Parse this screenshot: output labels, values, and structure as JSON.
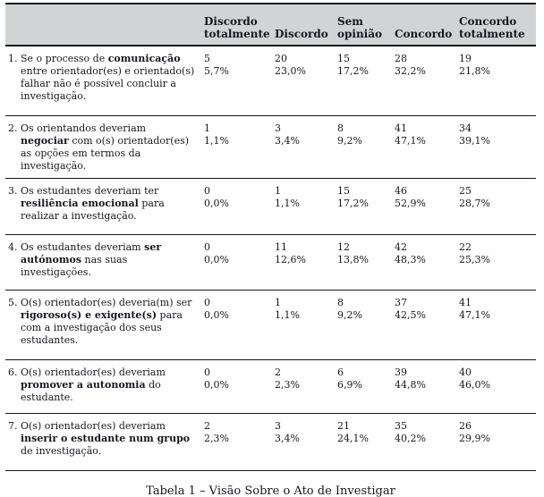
{
  "table": {
    "columns": [
      "Discordo totalmente",
      "Discordo",
      "Sem opinião",
      "Concordo",
      "Concordo totalmente"
    ],
    "rows": [
      {
        "num": "1.",
        "question": [
          {
            "t": "Se o processo de ",
            "b": false
          },
          {
            "t": "comunicação",
            "b": true
          },
          {
            "t": " entre orientador(es) e orientado(s) falhar não é possível concluir a investigação.",
            "b": false
          }
        ],
        "counts": [
          "5",
          "20",
          "15",
          "28",
          "19"
        ],
        "pcts": [
          "5,7%",
          "23,0%",
          "17,2%",
          "32,2%",
          "21,8%"
        ]
      },
      {
        "num": "2.",
        "question": [
          {
            "t": "Os orientandos deveriam ",
            "b": false
          },
          {
            "t": "negociar",
            "b": true
          },
          {
            "t": " com o(s) orientador(es) as opções em termos da investigação.",
            "b": false
          }
        ],
        "counts": [
          "1",
          "3",
          "8",
          "41",
          "34"
        ],
        "pcts": [
          "1,1%",
          "3,4%",
          "9,2%",
          "47,1%",
          "39,1%"
        ]
      },
      {
        "num": "3.",
        "question": [
          {
            "t": "Os estudantes deveriam ter ",
            "b": false
          },
          {
            "t": "resiliência emocional",
            "b": true
          },
          {
            "t": " para realizar a investigação.",
            "b": false
          }
        ],
        "counts": [
          "0",
          "1",
          "15",
          "46",
          "25"
        ],
        "pcts": [
          "0,0%",
          "1,1%",
          "17,2%",
          "52,9%",
          "28,7%"
        ]
      },
      {
        "num": "4.",
        "question": [
          {
            "t": "Os estudantes deveriam ",
            "b": false
          },
          {
            "t": "ser autónomos",
            "b": true
          },
          {
            "t": " nas suas investigações.",
            "b": false
          }
        ],
        "counts": [
          "0",
          "11",
          "12",
          "42",
          "22"
        ],
        "pcts": [
          "0,0%",
          "12,6%",
          "13,8%",
          "48,3%",
          "25,3%"
        ]
      },
      {
        "num": "5.",
        "question": [
          {
            "t": "O(s) orientador(es) deveria(m) ser ",
            "b": false
          },
          {
            "t": "rigoroso(s) e exigente(s)",
            "b": true
          },
          {
            "t": " para com a investigação dos seus estudantes.",
            "b": false
          }
        ],
        "counts": [
          "0",
          "1",
          "8",
          "37",
          "41"
        ],
        "pcts": [
          "0,0%",
          "1,1%",
          "9,2%",
          "42,5%",
          "47,1%"
        ]
      },
      {
        "num": "6.",
        "question": [
          {
            "t": "O(s) orientador(es) deveriam ",
            "b": false
          },
          {
            "t": "promover a autonomia",
            "b": true
          },
          {
            "t": " do estudante.",
            "b": false
          }
        ],
        "counts": [
          "0",
          "2",
          "6",
          "39",
          "40"
        ],
        "pcts": [
          "0,0%",
          "2,3%",
          "6,9%",
          "44,8%",
          "46,0%"
        ]
      },
      {
        "num": "7.",
        "question": [
          {
            "t": "O(s) orientador(es) deveriam ",
            "b": false
          },
          {
            "t": "inserir o estudante num grupo",
            "b": true
          },
          {
            "t": " de investigação.",
            "b": false
          }
        ],
        "counts": [
          "2",
          "3",
          "21",
          "35",
          "26"
        ],
        "pcts": [
          "2,3%",
          "3,4%",
          "24,1%",
          "40,2%",
          "29,9%"
        ]
      }
    ]
  },
  "caption": "Tabela 1 – Visão Sobre o Ato de Investigar"
}
